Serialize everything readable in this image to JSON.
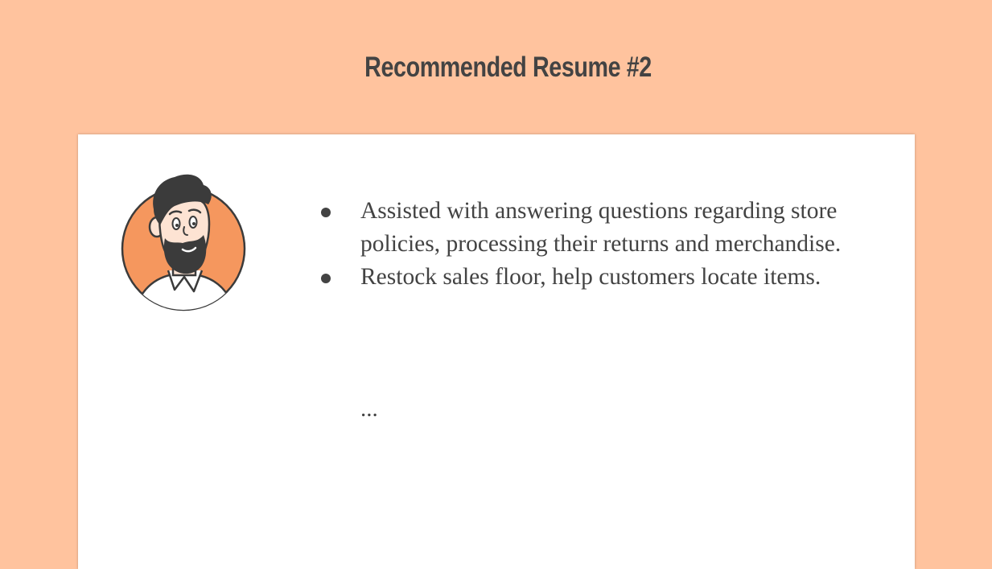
{
  "slide": {
    "title": "Recommended Resume #2",
    "bullets": [
      "Assisted with answering questions regarding store policies, processing their returns and merchandise.",
      "Restock sales floor, help customers locate items."
    ],
    "ellipsis": "...",
    "avatar_icon": "bearded-man-avatar-icon"
  },
  "colors": {
    "background": "#ffc39e",
    "card": "#ffffff",
    "text": "#434343",
    "avatar_circle": "#f5975e"
  }
}
